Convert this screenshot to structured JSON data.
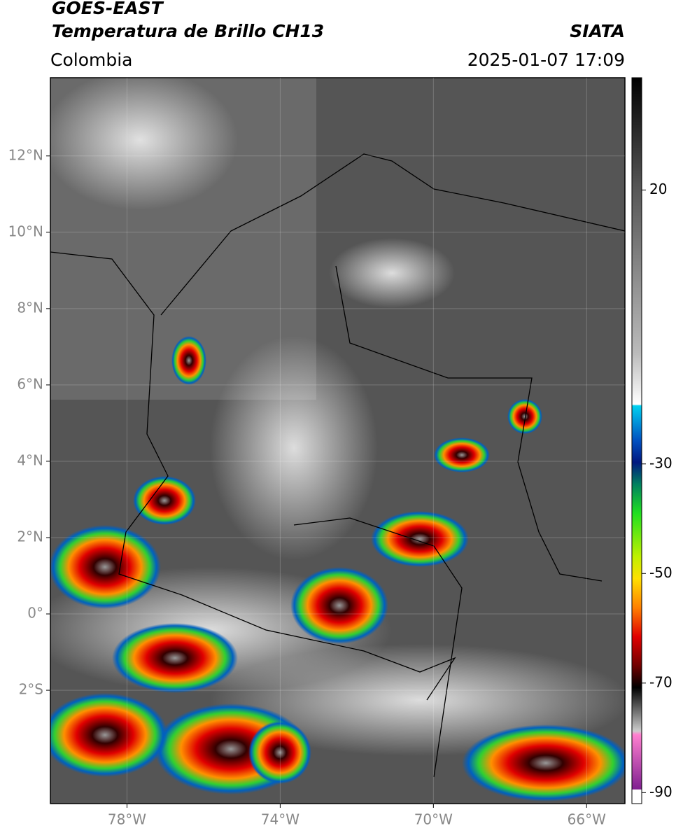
{
  "header": {
    "title": "GOES-EAST",
    "subtitle": "Temperatura de Brillo CH13",
    "region": "Colombia",
    "source": "SIATA",
    "datetime": "2025-01-07 17:09"
  },
  "map": {
    "xlim": [
      -80,
      -65
    ],
    "ylim": [
      -4.97,
      14.05
    ],
    "xticks": [
      {
        "value": -78,
        "label": "78°W"
      },
      {
        "value": -74,
        "label": "74°W"
      },
      {
        "value": -70,
        "label": "70°W"
      },
      {
        "value": -66,
        "label": "66°W"
      }
    ],
    "yticks": [
      {
        "value": 12,
        "label": "12°N"
      },
      {
        "value": 10,
        "label": "10°N"
      },
      {
        "value": 8,
        "label": "8°N"
      },
      {
        "value": 6,
        "label": "6°N"
      },
      {
        "value": 4,
        "label": "4°N"
      },
      {
        "value": 2,
        "label": "2°N"
      },
      {
        "value": 0,
        "label": "0°"
      },
      {
        "value": -2,
        "label": "2°S"
      }
    ]
  },
  "colorbar": {
    "lim": [
      -92,
      40.5
    ],
    "ticks": [
      20,
      -30,
      -50,
      -70,
      -90
    ]
  }
}
